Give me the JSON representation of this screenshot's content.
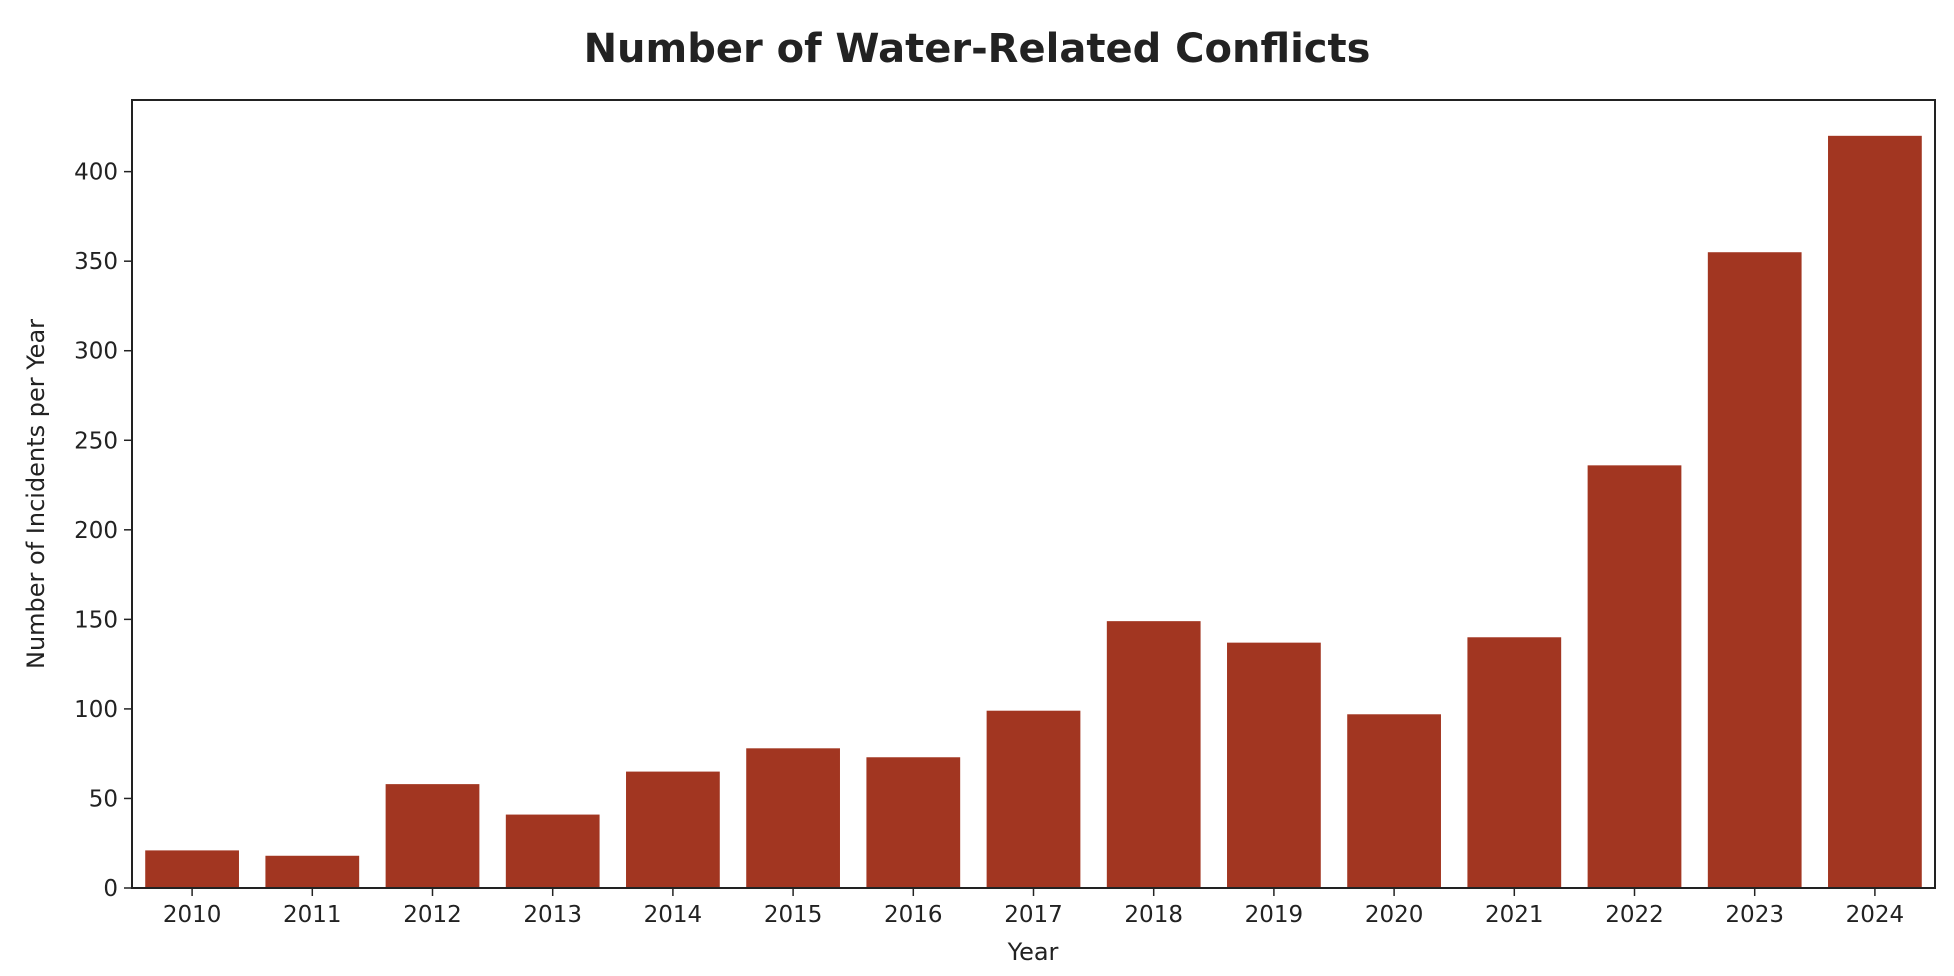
{
  "chart_data": {
    "type": "bar",
    "title": "Number of Water-Related Conflicts",
    "xlabel": "Year",
    "ylabel": "Number of Incidents per Year",
    "categories": [
      "2010",
      "2011",
      "2012",
      "2013",
      "2014",
      "2015",
      "2016",
      "2017",
      "2018",
      "2019",
      "2020",
      "2021",
      "2022",
      "2023",
      "2024"
    ],
    "values": [
      21,
      18,
      58,
      41,
      65,
      78,
      73,
      99,
      149,
      137,
      97,
      140,
      236,
      355,
      420
    ],
    "ylim": [
      0,
      440
    ],
    "yticks": [
      0,
      50,
      100,
      150,
      200,
      250,
      300,
      350,
      400
    ],
    "grid": false,
    "bar_color": "#a23621"
  }
}
